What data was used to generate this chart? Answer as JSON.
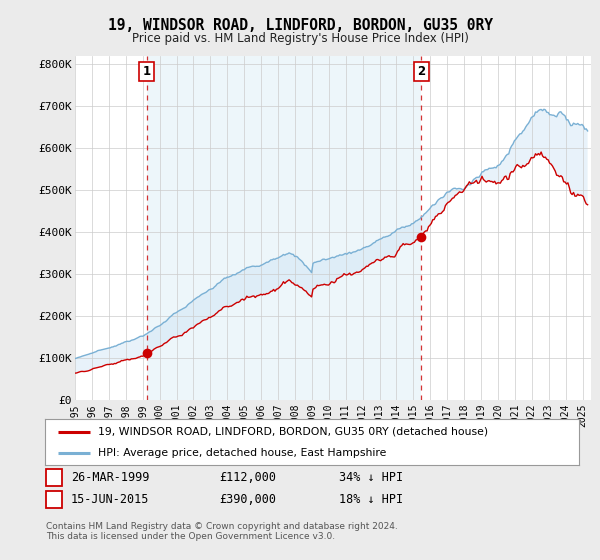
{
  "title": "19, WINDSOR ROAD, LINDFORD, BORDON, GU35 0RY",
  "subtitle": "Price paid vs. HM Land Registry's House Price Index (HPI)",
  "ylabel_ticks": [
    "£0",
    "£100K",
    "£200K",
    "£300K",
    "£400K",
    "£500K",
    "£600K",
    "£700K",
    "£800K"
  ],
  "ytick_values": [
    0,
    100000,
    200000,
    300000,
    400000,
    500000,
    600000,
    700000,
    800000
  ],
  "ylim": [
    0,
    820000
  ],
  "xlim_start": 1995.0,
  "xlim_end": 2025.5,
  "sale1_x": 1999.23,
  "sale1_y": 112000,
  "sale2_x": 2015.46,
  "sale2_y": 390000,
  "sale_color": "#cc0000",
  "hpi_color": "#7ab0d4",
  "fill_color": "#ddeeff",
  "legend_sale": "19, WINDSOR ROAD, LINDFORD, BORDON, GU35 0RY (detached house)",
  "legend_hpi": "HPI: Average price, detached house, East Hampshire",
  "annotation1": [
    "1",
    "26-MAR-1999",
    "£112,000",
    "34% ↓ HPI"
  ],
  "annotation2": [
    "2",
    "15-JUN-2015",
    "£390,000",
    "18% ↓ HPI"
  ],
  "footnote": "Contains HM Land Registry data © Crown copyright and database right 2024.\nThis data is licensed under the Open Government Licence v3.0.",
  "background_color": "#ebebeb",
  "plot_bg_color": "#ffffff",
  "grid_color": "#cccccc"
}
